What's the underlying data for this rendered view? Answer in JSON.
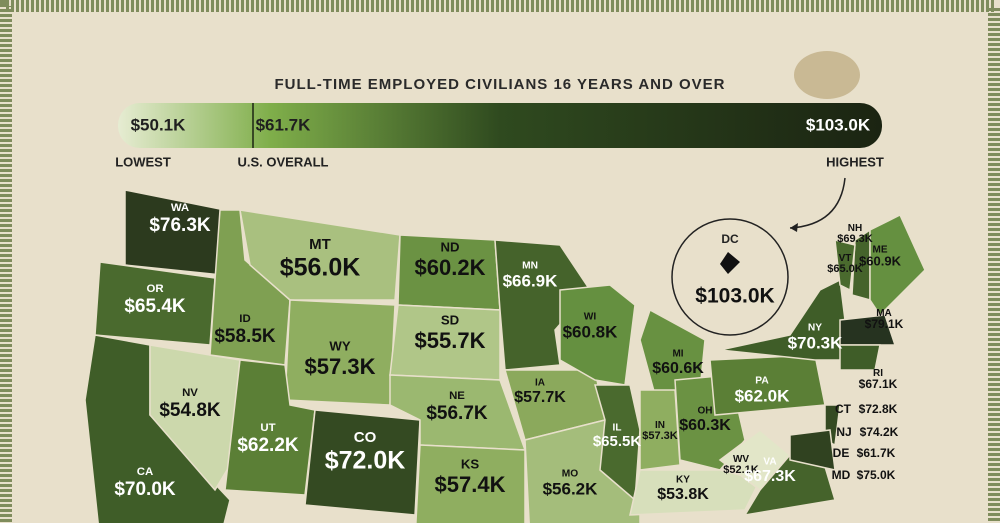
{
  "header": {
    "title": "FULL-TIME EMPLOYED CIVILIANS 16 YEARS AND OVER",
    "legend": {
      "lowest": {
        "label": "LOWEST",
        "value": "$50.1K"
      },
      "overall": {
        "label": "U.S. OVERALL",
        "value": "$61.7K"
      },
      "highest": {
        "label": "HIGHEST",
        "value": "$103.0K"
      }
    }
  },
  "states": [
    {
      "abbr": "WA",
      "value": "$76.3K"
    },
    {
      "abbr": "OR",
      "value": "$65.4K"
    },
    {
      "abbr": "CA",
      "value": "$70.0K"
    },
    {
      "abbr": "NV",
      "value": "$54.8K"
    },
    {
      "abbr": "ID",
      "value": "$58.5K"
    },
    {
      "abbr": "MT",
      "value": "$56.0K"
    },
    {
      "abbr": "WY",
      "value": "$57.3K"
    },
    {
      "abbr": "UT",
      "value": "$62.2K"
    },
    {
      "abbr": "CO",
      "value": "$72.0K"
    },
    {
      "abbr": "ND",
      "value": "$60.2K"
    },
    {
      "abbr": "SD",
      "value": "$55.7K"
    },
    {
      "abbr": "NE",
      "value": "$56.7K"
    },
    {
      "abbr": "KS",
      "value": "$57.4K"
    },
    {
      "abbr": "MN",
      "value": "$66.9K"
    },
    {
      "abbr": "IA",
      "value": "$57.7K"
    },
    {
      "abbr": "MO",
      "value": "$56.2K"
    },
    {
      "abbr": "WI",
      "value": "$60.8K"
    },
    {
      "abbr": "IL",
      "value": "$65.5K"
    },
    {
      "abbr": "MI",
      "value": "$60.6K"
    },
    {
      "abbr": "IN",
      "value": "$57.3K"
    },
    {
      "abbr": "OH",
      "value": "$60.3K"
    },
    {
      "abbr": "KY",
      "value": "$53.8K"
    },
    {
      "abbr": "WV",
      "value": "$52.1K"
    },
    {
      "abbr": "VA",
      "value": "$67.3K"
    },
    {
      "abbr": "PA",
      "value": "$62.0K"
    },
    {
      "abbr": "NY",
      "value": "$70.3K"
    },
    {
      "abbr": "NH",
      "value": "$69.3K"
    },
    {
      "abbr": "VT",
      "value": "$65.0K"
    },
    {
      "abbr": "ME",
      "value": "$60.9K"
    },
    {
      "abbr": "MA",
      "value": "$79.1K"
    },
    {
      "abbr": "RI",
      "value": "$67.1K"
    },
    {
      "abbr": "CT",
      "value": "$72.8K"
    },
    {
      "abbr": "NJ",
      "value": "$74.2K"
    },
    {
      "abbr": "DE",
      "value": "$61.7K"
    },
    {
      "abbr": "MD",
      "value": "$75.0K"
    }
  ],
  "inset": {
    "abbr": "DC",
    "value": "$103.0K"
  }
}
